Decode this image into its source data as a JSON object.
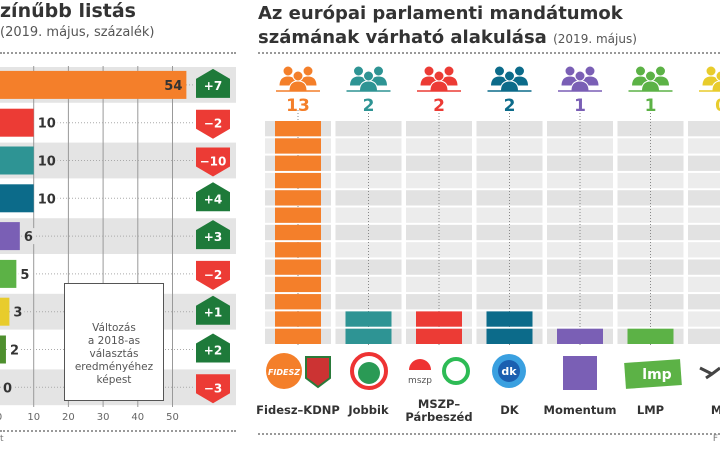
{
  "left": {
    "title": "zínűbb listás",
    "subtitle": "(2019. május, százalék)",
    "legend_text": [
      "Változás",
      "a 2018-as",
      "választás",
      "eredményéhez",
      "képest"
    ]
  },
  "right": {
    "title_line1": "Az európai parlamenti mandátumok",
    "title_line2": "számának várható alakulása",
    "title_sub": "(2019. május)"
  },
  "footer": {
    "left": "t",
    "right": "F"
  },
  "colors": {
    "up": "#1e7a3a",
    "down": "#ec3b35",
    "row_stripe": "#e4e4e4"
  },
  "chart_data": [
    {
      "type": "bar",
      "orientation": "horizontal",
      "values": [
        54,
        10,
        10,
        10,
        6,
        5,
        3,
        2,
        0
      ],
      "changes": [
        "+7",
        "−2",
        "−10",
        "+4",
        "+3",
        "−2",
        "+1",
        "+2",
        "−3"
      ],
      "colors": [
        "#f47f2a",
        "#ec3b35",
        "#2e9494",
        "#0c6b8a",
        "#7a5fb5",
        "#5cb246",
        "#e8cc2c",
        "#4e8f2e",
        "#999999"
      ],
      "xticks": [
        "0",
        "10",
        "20",
        "30",
        "40",
        "50"
      ],
      "xlim": [
        0,
        57
      ],
      "grid": true
    },
    {
      "type": "bar",
      "categories": [
        "Fidesz–KDNP",
        "Jobbik",
        "MSZP–Párbeszéd",
        "DK",
        "Momentum",
        "LMP",
        "MK"
      ],
      "values": [
        13,
        2,
        2,
        2,
        1,
        1,
        0
      ],
      "ylim": [
        0,
        13
      ],
      "colors": [
        "#f47f2a",
        "#2e9494",
        "#ec3b35",
        "#0c6b8a",
        "#7a5fb5",
        "#5cb246",
        "#e8cc2c"
      ],
      "icons": [
        "people-icon",
        "people-icon",
        "people-icon",
        "people-icon",
        "people-icon",
        "people-icon",
        "people-icon"
      ],
      "logos": [
        "FIDESZ",
        "lmp",
        "mszp",
        "dk"
      ]
    }
  ]
}
